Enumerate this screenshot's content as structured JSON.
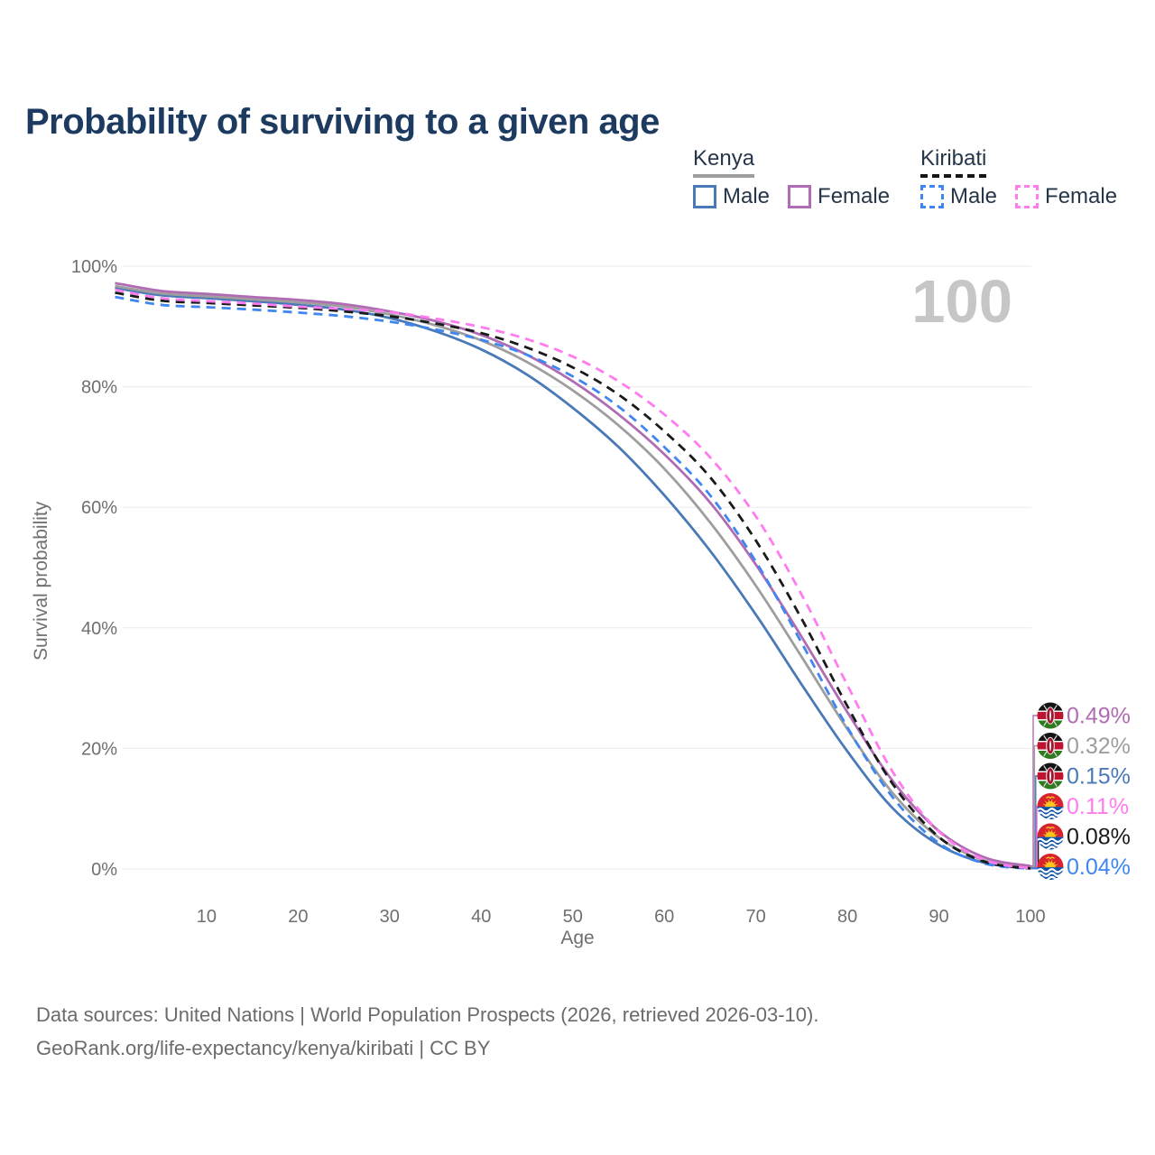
{
  "title": "Probability of surviving to a given age",
  "legend": {
    "groups": [
      {
        "label": "Kenya",
        "line_style": "solid",
        "underline_color": "#9e9e9e",
        "items": [
          {
            "label": "Male",
            "color": "#4a79b8"
          },
          {
            "label": "Female",
            "color": "#b06cb3"
          }
        ]
      },
      {
        "label": "Kiribati",
        "line_style": "dashed",
        "underline_color": "#161616",
        "items": [
          {
            "label": "Male",
            "color": "#3f86f0"
          },
          {
            "label": "Female",
            "color": "#ff7bef"
          }
        ]
      }
    ]
  },
  "chart_data": {
    "type": "line",
    "title": "Probability of surviving to a given age",
    "xlabel": "Age",
    "ylabel": "Survival probability",
    "xlim": [
      0,
      100
    ],
    "ylim": [
      0,
      100
    ],
    "x_ticks": [
      10,
      20,
      30,
      40,
      50,
      60,
      70,
      80,
      90,
      100
    ],
    "y_ticks": [
      0,
      20,
      40,
      60,
      80,
      100
    ],
    "y_tick_suffix": "%",
    "grid": "horizontal",
    "watermark": "100",
    "x": [
      0,
      5,
      10,
      15,
      20,
      25,
      30,
      35,
      40,
      45,
      50,
      55,
      60,
      65,
      70,
      75,
      80,
      85,
      90,
      95,
      100
    ],
    "series": [
      {
        "name": "Kenya Male",
        "country": "Kenya",
        "sex": "Male",
        "color": "#4a79b8",
        "dash": "solid",
        "end_label": "0.15%",
        "values": [
          96.4,
          95.2,
          94.7,
          94.2,
          93.6,
          92.8,
          91.4,
          89.2,
          86.2,
          82.0,
          76.5,
          70.0,
          62.0,
          52.8,
          42.2,
          30.6,
          19.5,
          10.0,
          4.0,
          1.0,
          0.15
        ]
      },
      {
        "name": "Kenya",
        "country": "Kenya",
        "sex": "All",
        "color": "#9e9e9e",
        "dash": "solid",
        "end_label": "0.32%",
        "values": [
          96.7,
          95.5,
          95.0,
          94.5,
          94.0,
          93.3,
          92.0,
          90.2,
          87.7,
          84.1,
          79.4,
          73.6,
          66.4,
          57.5,
          47.0,
          35.2,
          23.2,
          12.5,
          5.2,
          1.4,
          0.32
        ]
      },
      {
        "name": "Kenya Female",
        "country": "Kenya",
        "sex": "Female",
        "color": "#b06cb3",
        "dash": "solid",
        "end_label": "0.49%",
        "values": [
          97.2,
          95.9,
          95.4,
          94.9,
          94.4,
          93.7,
          92.5,
          90.9,
          88.6,
          85.3,
          80.9,
          75.4,
          68.8,
          60.8,
          50.5,
          38.5,
          26.0,
          14.5,
          6.3,
          1.9,
          0.49
        ]
      },
      {
        "name": "Kiribati Male",
        "country": "Kiribati",
        "sex": "Male",
        "color": "#3f86f0",
        "dash": "dashed",
        "end_label": "0.04%",
        "values": [
          94.9,
          93.6,
          93.2,
          92.8,
          92.3,
          91.7,
          90.8,
          89.5,
          87.8,
          85.3,
          81.7,
          76.7,
          70.0,
          62.0,
          51.0,
          37.5,
          23.5,
          11.8,
          4.3,
          0.9,
          0.04
        ]
      },
      {
        "name": "Kiribati",
        "country": "Kiribati",
        "sex": "All",
        "color": "#1a1a1a",
        "dash": "dashed",
        "end_label": "0.08%",
        "values": [
          95.6,
          94.3,
          93.9,
          93.5,
          93.1,
          92.5,
          91.7,
          90.5,
          88.9,
          86.5,
          83.2,
          78.7,
          72.6,
          65.0,
          54.5,
          41.5,
          27.0,
          14.0,
          5.3,
          1.2,
          0.08
        ]
      },
      {
        "name": "Kiribati Female",
        "country": "Kiribati",
        "sex": "Female",
        "color": "#ff7bef",
        "dash": "dashed",
        "end_label": "0.11%",
        "values": [
          96.1,
          94.7,
          94.2,
          93.8,
          93.3,
          92.9,
          92.4,
          91.3,
          89.9,
          87.9,
          85.0,
          80.9,
          75.4,
          68.3,
          58.5,
          45.5,
          30.5,
          16.0,
          6.2,
          1.5,
          0.11
        ]
      }
    ]
  },
  "footer": {
    "line1": "Data sources: United Nations | World Population Prospects (2026, retrieved 2026-03-10).",
    "line2": "GeoRank.org/life-expectancy/kenya/kiribati | CC BY"
  }
}
